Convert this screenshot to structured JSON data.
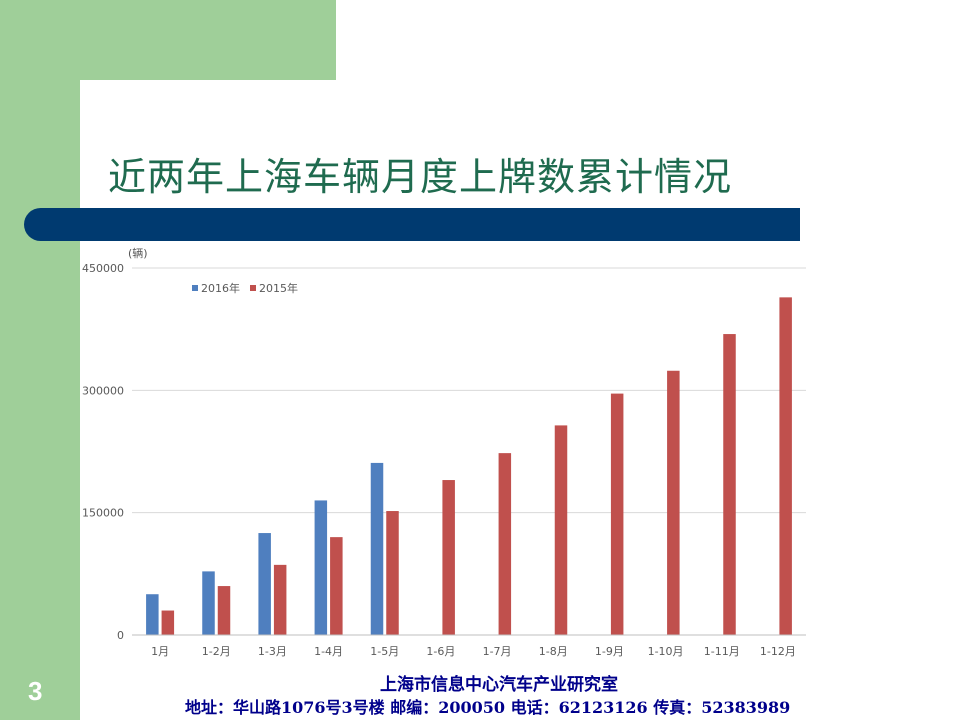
{
  "slide": {
    "title": "近两年上海车辆月度上牌数累计情况",
    "page_number": "3"
  },
  "footer": {
    "org": "上海市信息中心汽车产业研究室",
    "contact": "地址：华山路1076号3号楼  邮编：200050  电话：62123126  传真：52383989"
  },
  "colors": {
    "green_bg": "#9fcf99",
    "title_bar": "#003a70",
    "series_2016": "#4f7fbf",
    "series_2015": "#c0504d"
  },
  "chart_data": {
    "type": "bar",
    "unit_label": "(辆)",
    "categories": [
      "1月",
      "1-2月",
      "1-3月",
      "1-4月",
      "1-5月",
      "1-6月",
      "1-7月",
      "1-8月",
      "1-9月",
      "1-10月",
      "1-11月",
      "1-12月"
    ],
    "series": [
      {
        "name": "2016年",
        "color": "#4f7fbf",
        "values": [
          50000,
          78000,
          125000,
          165000,
          211000,
          null,
          null,
          null,
          null,
          null,
          null,
          null
        ]
      },
      {
        "name": "2015年",
        "color": "#c0504d",
        "values": [
          30000,
          60000,
          86000,
          120000,
          152000,
          190000,
          223000,
          257000,
          296000,
          324000,
          369000,
          414000
        ]
      }
    ],
    "y_ticks": [
      "0",
      "150000",
      "300000",
      "450000"
    ],
    "ylim": [
      0,
      450000
    ],
    "grid": true,
    "legend_position": "top-left"
  }
}
